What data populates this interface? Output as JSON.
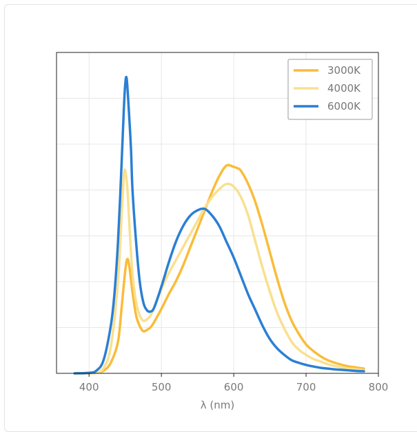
{
  "chart_data": {
    "type": "line",
    "title": "",
    "xlabel": "λ (nm)",
    "ylabel": "",
    "xlim": [
      355,
      800
    ],
    "ylim": [
      0,
      1.22
    ],
    "xticks": [
      400,
      500,
      600,
      700,
      800
    ],
    "xtick_labels": [
      "400",
      "500",
      "600",
      "700",
      "800"
    ],
    "grid": true,
    "legend_position": "top-right",
    "series": [
      {
        "name": "3000K",
        "color": "#f9bc3a",
        "x": [
          380,
          400,
          410,
          420,
          430,
          440,
          445,
          450,
          453,
          456,
          460,
          465,
          470,
          475,
          480,
          485,
          490,
          500,
          510,
          520,
          530,
          540,
          550,
          560,
          570,
          580,
          590,
          600,
          605,
          610,
          620,
          630,
          640,
          650,
          660,
          670,
          680,
          690,
          700,
          710,
          720,
          730,
          740,
          750,
          760,
          770,
          780
        ],
        "values": [
          0.0,
          0.0,
          0.002,
          0.01,
          0.04,
          0.12,
          0.25,
          0.39,
          0.435,
          0.4,
          0.31,
          0.22,
          0.18,
          0.16,
          0.165,
          0.175,
          0.195,
          0.245,
          0.3,
          0.35,
          0.41,
          0.48,
          0.55,
          0.62,
          0.69,
          0.75,
          0.79,
          0.785,
          0.78,
          0.77,
          0.72,
          0.65,
          0.56,
          0.46,
          0.36,
          0.27,
          0.2,
          0.15,
          0.11,
          0.085,
          0.065,
          0.05,
          0.04,
          0.032,
          0.026,
          0.022,
          0.018
        ]
      },
      {
        "name": "4000K",
        "color": "#f9e08f",
        "x": [
          380,
          400,
          410,
          420,
          430,
          440,
          445,
          448,
          450,
          453,
          456,
          460,
          465,
          470,
          475,
          480,
          485,
          490,
          500,
          510,
          520,
          530,
          540,
          550,
          560,
          570,
          580,
          590,
          600,
          610,
          620,
          630,
          640,
          650,
          660,
          670,
          680,
          690,
          700,
          710,
          720,
          730,
          740,
          750,
          760,
          770,
          780
        ],
        "values": [
          0.0,
          0.0,
          0.002,
          0.02,
          0.1,
          0.35,
          0.6,
          0.75,
          0.77,
          0.7,
          0.55,
          0.38,
          0.27,
          0.22,
          0.2,
          0.205,
          0.22,
          0.25,
          0.32,
          0.38,
          0.43,
          0.48,
          0.53,
          0.58,
          0.63,
          0.67,
          0.7,
          0.72,
          0.71,
          0.67,
          0.6,
          0.5,
          0.4,
          0.31,
          0.23,
          0.17,
          0.12,
          0.09,
          0.07,
          0.055,
          0.045,
          0.035,
          0.028,
          0.022,
          0.018,
          0.015,
          0.012
        ]
      },
      {
        "name": "6000K",
        "color": "#2a7fd4",
        "x": [
          380,
          400,
          410,
          420,
          430,
          435,
          440,
          445,
          448,
          450,
          452,
          455,
          458,
          460,
          465,
          470,
          475,
          480,
          485,
          490,
          500,
          510,
          520,
          530,
          540,
          550,
          560,
          570,
          580,
          590,
          600,
          610,
          620,
          630,
          640,
          650,
          660,
          670,
          680,
          690,
          700,
          710,
          720,
          730,
          740,
          750,
          760,
          770,
          780
        ],
        "values": [
          0.0,
          0.002,
          0.01,
          0.05,
          0.18,
          0.3,
          0.5,
          0.8,
          1.0,
          1.1,
          1.12,
          1.0,
          0.85,
          0.7,
          0.5,
          0.35,
          0.27,
          0.24,
          0.235,
          0.25,
          0.33,
          0.42,
          0.5,
          0.56,
          0.6,
          0.62,
          0.625,
          0.6,
          0.56,
          0.5,
          0.44,
          0.37,
          0.3,
          0.24,
          0.18,
          0.13,
          0.095,
          0.07,
          0.05,
          0.04,
          0.032,
          0.026,
          0.021,
          0.018,
          0.015,
          0.013,
          0.011,
          0.009,
          0.008
        ]
      }
    ]
  }
}
